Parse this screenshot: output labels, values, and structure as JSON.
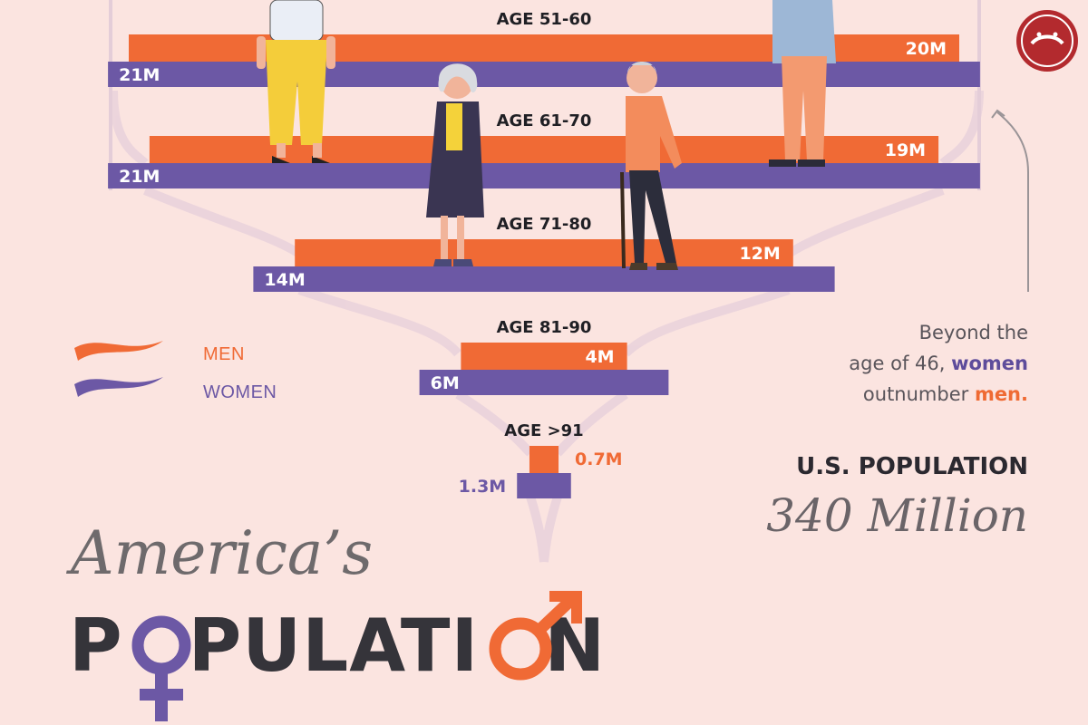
{
  "chart_data": {
    "type": "bar",
    "orientation": "horizontal-mirrored",
    "unit": "M",
    "categories": [
      "AGE 51-60",
      "AGE 61-70",
      "AGE 71-80",
      "AGE 81-90",
      "AGE >91"
    ],
    "series": [
      {
        "name": "MEN",
        "color": "#f06a35",
        "values": [
          20,
          19,
          12,
          4,
          0.7
        ],
        "labels": [
          "20M",
          "19M",
          "12M",
          "4M",
          "0.7M"
        ]
      },
      {
        "name": "WOMEN",
        "color": "#6c58a5",
        "values": [
          21,
          21,
          14,
          6,
          1.3
        ],
        "labels": [
          "21M",
          "21M",
          "14M",
          "6M",
          "1.3M"
        ]
      }
    ],
    "legend": {
      "position": "left",
      "entries": [
        "MEN",
        "WOMEN"
      ]
    }
  },
  "note": {
    "line1": "Beyond the",
    "line2a": "age of 46, ",
    "line2b": "women",
    "line3a": "outnumber ",
    "line3b": "men."
  },
  "population": {
    "label": "U.S. POPULATION",
    "value": "340 Million"
  },
  "title": {
    "line1": "America’s",
    "line2a": "P",
    "line2b": "PULATI",
    "line2c": "N"
  },
  "colors": {
    "men": "#f06a35",
    "women": "#6c58a5",
    "background": "#fbe4e0",
    "text": "#35343a"
  }
}
